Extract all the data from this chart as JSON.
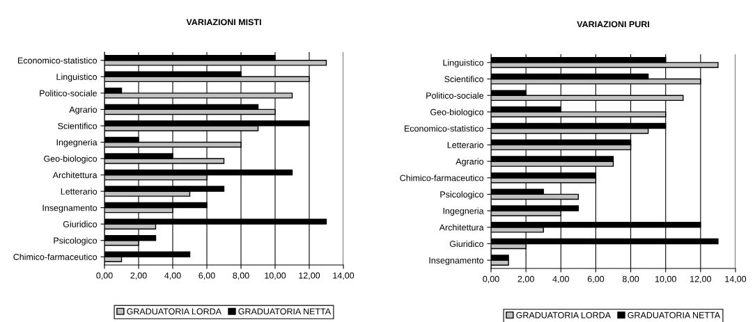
{
  "chart_data": [
    {
      "type": "bar",
      "orientation": "horizontal",
      "title": "VARIAZIONI MISTI",
      "categories": [
        "Economico-statistico",
        "Linguistico",
        "Politico-sociale",
        "Agrario",
        "Scientifico",
        "Ingegneria",
        "Geo-biologico",
        "Architettura",
        "Letterario",
        "Insegnamento",
        "Giuridico",
        "Psicologico",
        "Chimico-farmaceutico"
      ],
      "series": [
        {
          "name": "GRADUATORIA LORDA",
          "color": "#c0c0c0",
          "values": [
            13,
            12,
            11,
            10,
            9,
            8,
            7,
            6,
            5,
            4,
            3,
            2,
            1
          ]
        },
        {
          "name": "GRADUATORIA NETTA",
          "color": "#000000",
          "values": [
            10,
            8,
            1,
            9,
            12,
            2,
            4,
            11,
            7,
            6,
            13,
            3,
            5
          ]
        }
      ],
      "xlim": [
        0,
        14
      ],
      "xticks": [
        {
          "value": 0,
          "label": "0,00"
        },
        {
          "value": 2,
          "label": "2,00"
        },
        {
          "value": 4,
          "label": "4,00"
        },
        {
          "value": 6,
          "label": "6,00"
        },
        {
          "value": 8,
          "label": "8,00"
        },
        {
          "value": 10,
          "label": "10,00"
        },
        {
          "value": 12,
          "label": "12,00"
        },
        {
          "value": 14,
          "label": "14,00"
        }
      ],
      "grid": "x",
      "legend": "bottom"
    },
    {
      "type": "bar",
      "orientation": "horizontal",
      "title": "VARIAZIONI PURI",
      "categories": [
        "Linguistico",
        "Scientifico",
        "Politico-sociale",
        "Geo-biologico",
        "Economico-statistico",
        "Letterario",
        "Agrario",
        "Chimico-farmaceutico",
        "Psicologico",
        "Ingegneria",
        "Architettura",
        "Giuridico",
        "Insegnamento"
      ],
      "series": [
        {
          "name": "GRADUATORIA LORDA",
          "color": "#c0c0c0",
          "values": [
            13,
            12,
            11,
            10,
            9,
            8,
            7,
            6,
            5,
            4,
            3,
            2,
            1
          ]
        },
        {
          "name": "GRADUATORIA NETTA",
          "color": "#000000",
          "values": [
            10,
            9,
            2,
            4,
            10,
            8,
            7,
            6,
            3,
            5,
            12,
            13,
            1
          ]
        }
      ],
      "xlim": [
        0,
        14
      ],
      "xticks": [
        {
          "value": 0,
          "label": "0,00"
        },
        {
          "value": 2,
          "label": "2,00"
        },
        {
          "value": 4,
          "label": "4,00"
        },
        {
          "value": 6,
          "label": "6,00"
        },
        {
          "value": 8,
          "label": "8,00"
        },
        {
          "value": 10,
          "label": "10,00"
        },
        {
          "value": 12,
          "label": "12,00"
        },
        {
          "value": 14,
          "label": "14,00"
        }
      ],
      "grid": "x",
      "legend": "bottom"
    }
  ]
}
